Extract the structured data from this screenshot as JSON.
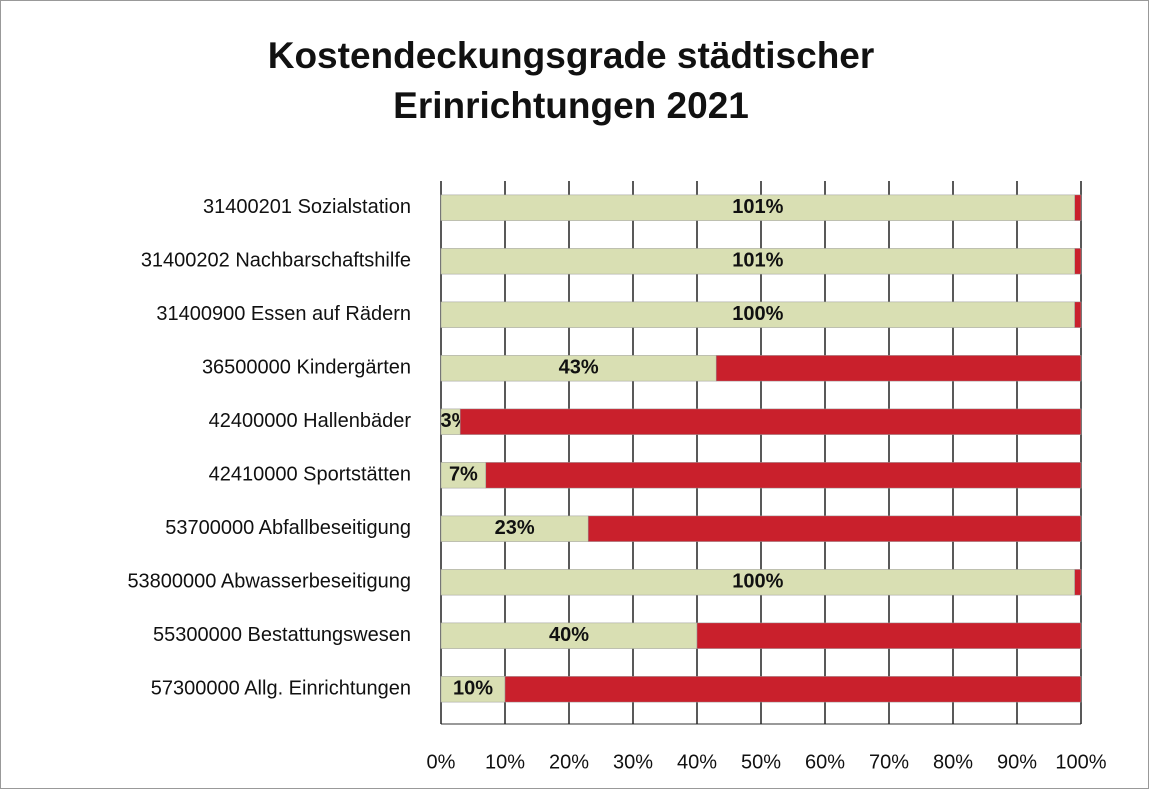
{
  "chart_data": {
    "type": "bar",
    "orientation": "horizontal",
    "stacked": "percent",
    "title": "Kostendeckungsgrade städtischer Erinrichtungen 2021",
    "categories": [
      "31400201 Sozialstation",
      "31400202 Nachbarschaftshilfe",
      "31400900 Essen auf Rädern",
      "36500000 Kindergärten",
      "42400000 Hallenbäder",
      "42410000 Sportstätten",
      "53700000 Abfallbeseitigung",
      "53800000 Abwasserbeseitigung",
      "55300000 Bestattungswesen",
      "57300000 Allg. Einrichtungen"
    ],
    "series": [
      {
        "color": "#d9dfb3",
        "values": [
          101,
          101,
          100,
          43,
          3,
          7,
          23,
          100,
          40,
          10
        ],
        "value_labels": [
          "101%",
          "101%",
          "100%",
          "43%",
          "3%",
          "7%",
          "23%",
          "100%",
          "40%",
          "10%"
        ]
      },
      {
        "color": "#c9202c",
        "values": [
          1,
          1,
          1,
          57,
          97,
          93,
          77,
          1,
          60,
          90
        ]
      }
    ],
    "xlim": [
      0,
      100
    ],
    "xticks": [
      {
        "value": 0,
        "label": "0%"
      },
      {
        "value": 10,
        "label": "10%"
      },
      {
        "value": 20,
        "label": "20%"
      },
      {
        "value": 30,
        "label": "30%"
      },
      {
        "value": 40,
        "label": "40%"
      },
      {
        "value": 50,
        "label": "50%"
      },
      {
        "value": 60,
        "label": "60%"
      },
      {
        "value": 70,
        "label": "70%"
      },
      {
        "value": 80,
        "label": "80%"
      },
      {
        "value": 90,
        "label": "90%"
      },
      {
        "value": 100,
        "label": "100%"
      }
    ],
    "grid": true
  }
}
